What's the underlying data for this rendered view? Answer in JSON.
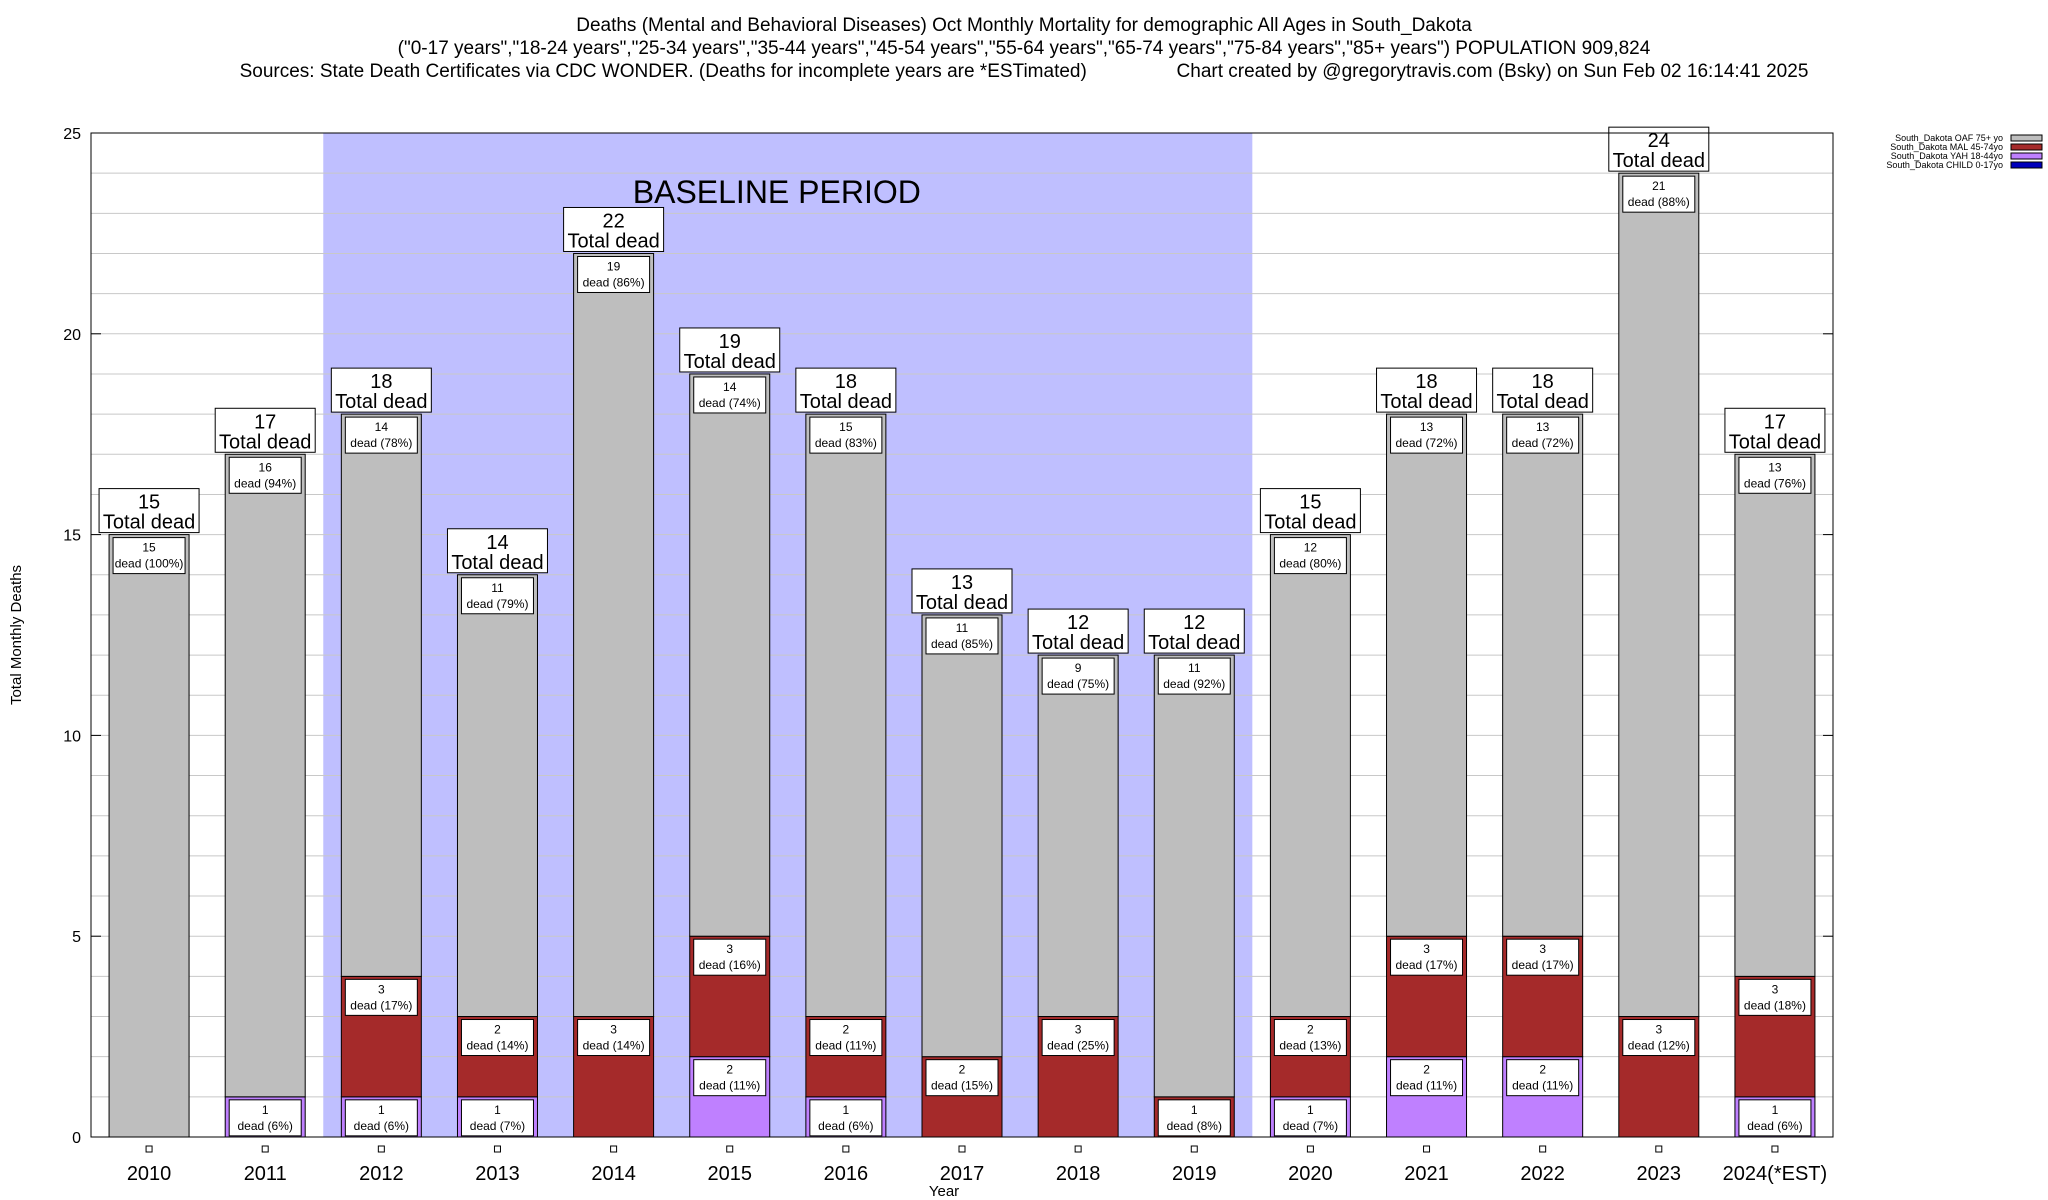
{
  "title": {
    "line1": "Deaths (Mental and Behavioral Diseases) Oct Monthly Mortality for demographic All Ages in South_Dakota",
    "line2": "(\"0-17 years\",\"18-24 years\",\"25-34 years\",\"35-44 years\",\"45-54 years\",\"55-64 years\",\"65-74 years\",\"75-84 years\",\"85+ years\") POPULATION 909,824",
    "line3": "Sources: State Death Certificates via CDC WONDER. (Deaths for incomplete years are *ESTimated)                 Chart created by @gregorytravis.com (Bsky) on Sun Feb 02 16:14:41 2025"
  },
  "chart_data": {
    "type": "bar",
    "stacked": true,
    "xlabel": "Year",
    "ylabel": "Total Monthly Deaths",
    "ylim": [
      0,
      25
    ],
    "yticks": [
      0,
      5,
      10,
      15,
      20,
      25
    ],
    "grid": true,
    "legend_position": "top-right",
    "baseline_label": "BASELINE PERIOD",
    "baseline_range": [
      "2012",
      "2019"
    ],
    "total_suffix": "Total dead",
    "categories": [
      "2010",
      "2011",
      "2012",
      "2013",
      "2014",
      "2015",
      "2016",
      "2017",
      "2018",
      "2019",
      "2020",
      "2021",
      "2022",
      "2023",
      "2024(*EST)"
    ],
    "totals": [
      15,
      17,
      18,
      14,
      22,
      19,
      18,
      13,
      12,
      12,
      15,
      18,
      18,
      24,
      17
    ],
    "series": [
      {
        "name": "South_Dakota CHILD 0-17yo",
        "color": "#0000bb",
        "values": [
          0,
          0,
          0,
          0,
          0,
          0,
          0,
          0,
          0,
          0,
          0,
          0,
          0,
          0,
          0
        ],
        "labels": [
          null,
          null,
          null,
          null,
          null,
          null,
          null,
          null,
          null,
          null,
          null,
          null,
          null,
          null,
          null
        ]
      },
      {
        "name": "South_Dakota YAH 18-44yo",
        "color": "#bf80ff",
        "values": [
          0,
          1,
          1,
          1,
          0,
          2,
          1,
          0,
          0,
          0,
          1,
          2,
          2,
          0,
          1
        ],
        "labels": [
          null,
          "dead (6%)",
          "dead (6%)",
          "dead (7%)",
          null,
          "dead (11%)",
          "dead (6%)",
          null,
          null,
          null,
          "dead (7%)",
          "dead (11%)",
          "dead (11%)",
          null,
          "dead (6%)"
        ]
      },
      {
        "name": "South_Dakota MAL 45-74yo",
        "color": "#a52a2a",
        "values": [
          0,
          0,
          3,
          2,
          3,
          3,
          2,
          2,
          3,
          1,
          2,
          3,
          3,
          3,
          3
        ],
        "labels": [
          null,
          null,
          "dead (17%)",
          "dead (14%)",
          "dead (14%)",
          "dead (16%)",
          "dead (11%)",
          "dead (15%)",
          "dead (25%)",
          "dead (8%)",
          "dead (13%)",
          "dead (17%)",
          "dead (17%)",
          "dead (12%)",
          "dead (18%)"
        ]
      },
      {
        "name": "South_Dakota OAF 75+ yo",
        "color": "#bebebe",
        "values": [
          15,
          16,
          14,
          11,
          19,
          14,
          15,
          11,
          9,
          11,
          12,
          13,
          13,
          21,
          13
        ],
        "labels": [
          "dead (100%)",
          "dead (94%)",
          "dead (78%)",
          "dead (79%)",
          "dead (86%)",
          "dead (74%)",
          "dead (83%)",
          "dead (85%)",
          "dead (75%)",
          "dead (92%)",
          "dead (80%)",
          "dead (72%)",
          "dead (72%)",
          "dead (88%)",
          "dead (76%)"
        ]
      }
    ],
    "legend": [
      {
        "name": "South_Dakota OAF 75+ yo",
        "color": "#bebebe"
      },
      {
        "name": "South_Dakota MAL 45-74yo",
        "color": "#a52a2a"
      },
      {
        "name": "South_Dakota YAH 18-44yo",
        "color": "#bf80ff"
      },
      {
        "name": "South_Dakota CHILD 0-17yo",
        "color": "#0000bb"
      }
    ],
    "colors": {
      "baseline_shade": "#bfbfff",
      "grid": "#c8c8c8"
    }
  }
}
